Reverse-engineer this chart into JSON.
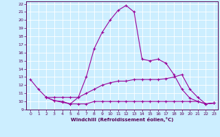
{
  "xlabel": "Windchill (Refroidissement éolien,°C)",
  "background_color": "#cceeff",
  "line_color": "#990099",
  "xlim": [
    -0.5,
    23.5
  ],
  "ylim": [
    9,
    22.3
  ],
  "yticks": [
    9,
    10,
    11,
    12,
    13,
    14,
    15,
    16,
    17,
    18,
    19,
    20,
    21,
    22
  ],
  "xticks": [
    0,
    1,
    2,
    3,
    4,
    5,
    6,
    7,
    8,
    9,
    10,
    11,
    12,
    13,
    14,
    15,
    16,
    17,
    18,
    19,
    20,
    21,
    22,
    23
  ],
  "line1_x": [
    0,
    1,
    2,
    3,
    4,
    5,
    6,
    7,
    8,
    9,
    10,
    11,
    12,
    13,
    14,
    15,
    16,
    17,
    18,
    19,
    20,
    21,
    22,
    23
  ],
  "line1_y": [
    12.7,
    11.5,
    10.5,
    10.1,
    9.9,
    9.7,
    10.5,
    13.0,
    16.5,
    18.5,
    20.0,
    21.2,
    21.8,
    21.0,
    15.2,
    15.0,
    15.2,
    14.7,
    13.3,
    11.5,
    10.4,
    10.0,
    9.7,
    9.8
  ],
  "line2_x": [
    2,
    3,
    4,
    5,
    6,
    7,
    8,
    9,
    10,
    11,
    12,
    13,
    14,
    15,
    16,
    17,
    18,
    19,
    20,
    21,
    22,
    23
  ],
  "line2_y": [
    10.5,
    10.1,
    10.0,
    9.7,
    9.7,
    9.7,
    10.0,
    10.0,
    10.0,
    10.0,
    10.0,
    10.0,
    10.0,
    10.0,
    10.0,
    10.0,
    10.0,
    10.0,
    10.0,
    10.0,
    9.7,
    9.8
  ],
  "line3_x": [
    2,
    3,
    4,
    5,
    6,
    7,
    8,
    9,
    10,
    11,
    12,
    13,
    14,
    15,
    16,
    17,
    18,
    19,
    20,
    21,
    22,
    23
  ],
  "line3_y": [
    10.5,
    10.5,
    10.5,
    10.5,
    10.5,
    11.0,
    11.5,
    12.0,
    12.3,
    12.5,
    12.5,
    12.7,
    12.7,
    12.7,
    12.7,
    12.8,
    13.0,
    13.3,
    11.5,
    10.5,
    9.7,
    9.8
  ]
}
